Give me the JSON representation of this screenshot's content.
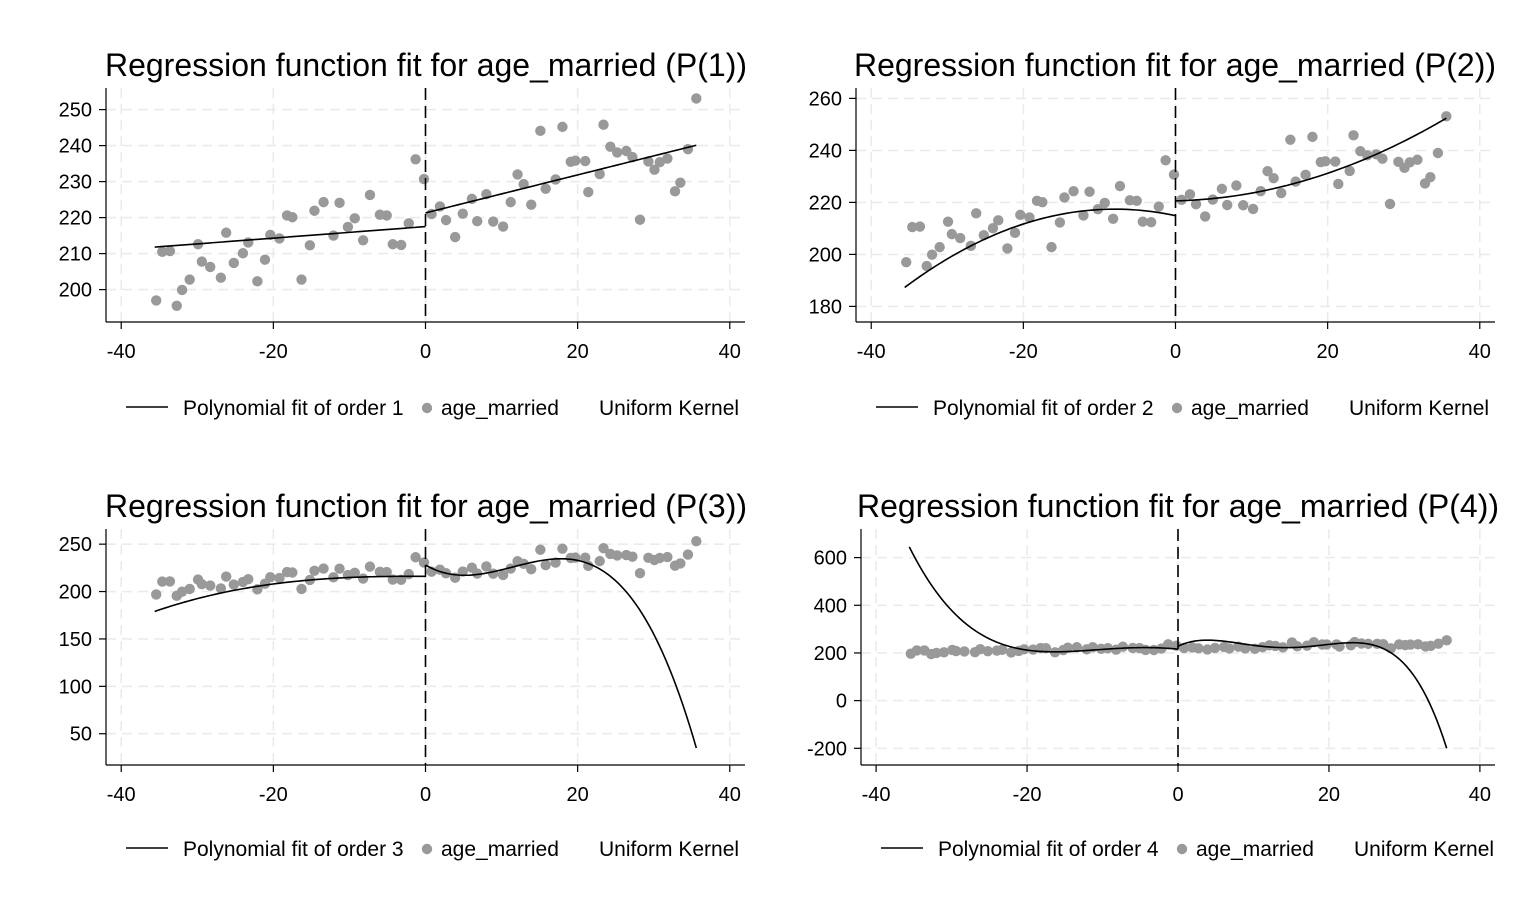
{
  "chart_data": [
    {
      "type": "scatter",
      "title": "Regression function fit for age_married (P(1))",
      "xlabel": "",
      "ylabel": "",
      "xlim": [
        -42,
        42
      ],
      "ylim": [
        191,
        256
      ],
      "xticks": [
        -40,
        -20,
        0,
        20,
        40
      ],
      "yticks": [
        200,
        210,
        220,
        230,
        240,
        250
      ],
      "cutoff": 0,
      "legend": {
        "placement": "bottom",
        "fit_label": "Polynomial fit of order 1",
        "points_label": "age_married",
        "kernel_label": "Uniform Kernel"
      },
      "fit_type": "linear",
      "fit_left": [
        [
          -35.6,
          211.8
        ],
        [
          0,
          217.5
        ]
      ],
      "fit_right": [
        [
          0,
          221.3
        ],
        [
          35.6,
          240.1
        ]
      ]
    },
    {
      "type": "scatter",
      "title": "Regression function fit for age_married (P(2))",
      "xlabel": "",
      "ylabel": "",
      "xlim": [
        -42,
        42
      ],
      "ylim": [
        174,
        264
      ],
      "xticks": [
        -40,
        -20,
        0,
        20,
        40
      ],
      "yticks": [
        180,
        200,
        220,
        240,
        260
      ],
      "cutoff": 0,
      "legend": {
        "placement": "bottom",
        "fit_label": "Polynomial fit of order 2",
        "points_label": "age_married",
        "kernel_label": "Uniform Kernel"
      },
      "fit_type": "quadratic",
      "fit_left": [
        [
          -35.6,
          187.3
        ],
        [
          -8,
          217.4
        ],
        [
          0,
          214.9
        ]
      ],
      "fit_right": [
        [
          0,
          220.6
        ],
        [
          15,
          226.8
        ],
        [
          35.6,
          252.4
        ]
      ]
    },
    {
      "type": "scatter",
      "title": "Regression function fit for age_married (P(3))",
      "xlabel": "",
      "ylabel": "",
      "xlim": [
        -42,
        42
      ],
      "ylim": [
        17,
        266
      ],
      "xticks": [
        -40,
        -20,
        0,
        20,
        40
      ],
      "yticks": [
        50,
        100,
        150,
        200,
        250
      ],
      "cutoff": 0,
      "legend": {
        "placement": "bottom",
        "fit_label": "Polynomial fit of order 3",
        "points_label": "age_married",
        "kernel_label": "Uniform Kernel"
      },
      "fit_type": "cubic",
      "fit_left": [
        [
          -35.6,
          179
        ],
        [
          -24,
          203
        ],
        [
          -12,
          214
        ],
        [
          0,
          216
        ]
      ],
      "fit_right": [
        [
          0,
          228
        ],
        [
          12,
          227
        ],
        [
          24,
          218
        ],
        [
          35.6,
          35
        ]
      ]
    },
    {
      "type": "scatter",
      "title": "Regression function fit for age_married (P(4))",
      "xlabel": "",
      "ylabel": "",
      "xlim": [
        -42,
        42
      ],
      "ylim": [
        -270,
        720
      ],
      "xticks": [
        -40,
        -20,
        0,
        20,
        40
      ],
      "yticks": [
        -200,
        0,
        200,
        400,
        600
      ],
      "cutoff": 0,
      "legend": {
        "placement": "bottom",
        "fit_label": "Polynomial fit of order 4",
        "points_label": "age_married",
        "kernel_label": "Uniform Kernel"
      },
      "fit_type": "quartic",
      "fit_left": [
        [
          -35.6,
          645
        ],
        [
          -28,
          320
        ],
        [
          -20,
          212
        ],
        [
          -10,
          215
        ],
        [
          0,
          216
        ]
      ],
      "fit_right": [
        [
          0,
          228
        ],
        [
          10,
          232
        ],
        [
          20,
          236
        ],
        [
          28,
          205
        ],
        [
          35.6,
          -200
        ]
      ]
    }
  ],
  "scatter_points": [
    [
      -35.4,
      197
    ],
    [
      -34.6,
      210.5
    ],
    [
      -33.6,
      210.7
    ],
    [
      -32.7,
      195.5
    ],
    [
      -32.0,
      199.9
    ],
    [
      -31.0,
      202.8
    ],
    [
      -29.9,
      212.6
    ],
    [
      -29.4,
      207.8
    ],
    [
      -28.3,
      206.3
    ],
    [
      -26.9,
      203.3
    ],
    [
      -26.2,
      215.8
    ],
    [
      -25.2,
      207.4
    ],
    [
      -24.0,
      210.1
    ],
    [
      -23.3,
      213.1
    ],
    [
      -22.1,
      202.3
    ],
    [
      -21.1,
      208.3
    ],
    [
      -20.4,
      215.2
    ],
    [
      -19.2,
      214.2
    ],
    [
      -18.2,
      220.6
    ],
    [
      -17.5,
      220.1
    ],
    [
      -16.3,
      202.8
    ],
    [
      -15.2,
      212.3
    ],
    [
      -14.6,
      221.9
    ],
    [
      -13.4,
      224.3
    ],
    [
      -12.1,
      215.0
    ],
    [
      -11.3,
      224.1
    ],
    [
      -10.2,
      217.4
    ],
    [
      -9.3,
      219.8
    ],
    [
      -8.2,
      213.7
    ],
    [
      -7.3,
      226.3
    ],
    [
      -6.0,
      220.8
    ],
    [
      -5.1,
      220.6
    ],
    [
      -4.3,
      212.6
    ],
    [
      -3.2,
      212.4
    ],
    [
      -2.2,
      218.4
    ],
    [
      -1.3,
      236.2
    ],
    [
      -0.2,
      230.7
    ],
    [
      0.8,
      221.0
    ],
    [
      1.9,
      223.1
    ],
    [
      2.7,
      219.3
    ],
    [
      3.9,
      214.6
    ],
    [
      4.9,
      221.1
    ],
    [
      6.1,
      225.2
    ],
    [
      6.8,
      219.0
    ],
    [
      8.0,
      226.5
    ],
    [
      8.9,
      218.9
    ],
    [
      10.2,
      217.5
    ],
    [
      11.2,
      224.3
    ],
    [
      12.1,
      232.0
    ],
    [
      12.9,
      229.3
    ],
    [
      13.9,
      223.6
    ],
    [
      15.1,
      244.1
    ],
    [
      15.8,
      228.0
    ],
    [
      17.1,
      230.6
    ],
    [
      18.0,
      245.2
    ],
    [
      19.1,
      235.5
    ],
    [
      19.7,
      235.8
    ],
    [
      21.0,
      235.7
    ],
    [
      21.4,
      227.1
    ],
    [
      22.9,
      232.1
    ],
    [
      23.4,
      245.8
    ],
    [
      24.3,
      239.7
    ],
    [
      25.2,
      238.1
    ],
    [
      26.4,
      238.5
    ],
    [
      27.2,
      236.8
    ],
    [
      28.2,
      219.4
    ],
    [
      29.3,
      235.6
    ],
    [
      30.1,
      233.3
    ],
    [
      30.8,
      235.4
    ],
    [
      31.8,
      236.4
    ],
    [
      32.8,
      227.3
    ],
    [
      33.5,
      229.7
    ],
    [
      34.5,
      239.0
    ],
    [
      35.6,
      253.1
    ]
  ],
  "colors": {
    "points": "#999999",
    "lines": "#000000",
    "grid": "#ebebeb",
    "background": "#ffffff"
  }
}
